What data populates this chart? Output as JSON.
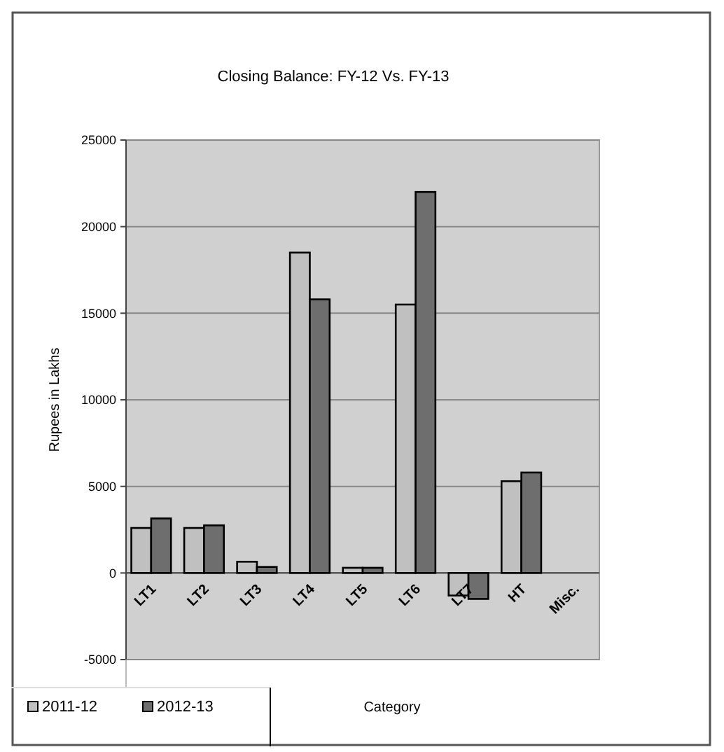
{
  "chart_data": {
    "type": "bar",
    "title": "Closing Balance: FY-12 Vs. FY-13",
    "xlabel": "Category",
    "ylabel": "Rupees in Lakhs",
    "categories": [
      "LT1",
      "LT2",
      "LT3",
      "LT4",
      "LT5",
      "LT6",
      "LT7",
      "HT",
      "Misc."
    ],
    "series": [
      {
        "name": "2011-12",
        "color": "#c0c0c0",
        "values": [
          2600,
          2600,
          650,
          18500,
          300,
          15500,
          -1300,
          5300,
          null
        ]
      },
      {
        "name": "2012-13",
        "color": "#6e6e6e",
        "values": [
          3150,
          2750,
          350,
          15800,
          300,
          22000,
          -1500,
          5800,
          null
        ]
      }
    ],
    "ylim": [
      -5000,
      25000
    ],
    "yticks": [
      -5000,
      0,
      5000,
      10000,
      15000,
      20000,
      25000
    ],
    "grid": "y",
    "legend": "bottom left"
  }
}
